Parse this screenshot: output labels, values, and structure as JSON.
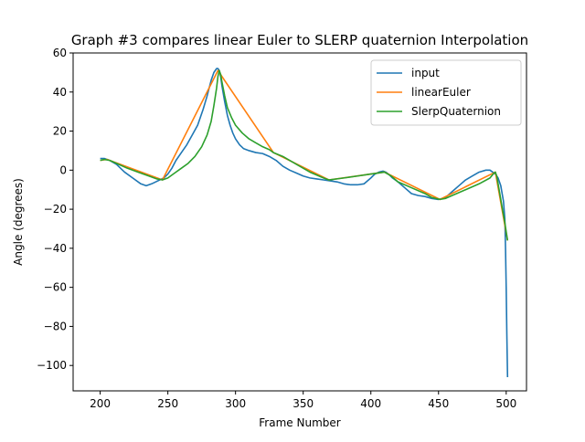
{
  "chart_data": {
    "type": "line",
    "title": "Graph #3 compares linear Euler to SLERP quaternion Interpolation",
    "xlabel": "Frame Number",
    "ylabel": "Angle (degrees)",
    "xlim": [
      180,
      515
    ],
    "ylim": [
      -113,
      60
    ],
    "xticks": [
      200,
      250,
      300,
      350,
      400,
      450,
      500
    ],
    "yticks": [
      60,
      40,
      20,
      0,
      -20,
      -40,
      -60,
      -80,
      -100
    ],
    "ytick_labels": [
      "60",
      "40",
      "20",
      "0",
      "−20",
      "−40",
      "−60",
      "−80",
      "−100"
    ],
    "grid": false,
    "legend_position": "top-right",
    "series": [
      {
        "name": "input",
        "color": "#1f77b4",
        "x": [
          200,
          203,
          207,
          212,
          218,
          224,
          230,
          234,
          238,
          241,
          244,
          247,
          250,
          253,
          256,
          260,
          264,
          268,
          272,
          276,
          279,
          282,
          284,
          286,
          287,
          288,
          289,
          290,
          292,
          294,
          296,
          298,
          300,
          303,
          306,
          310,
          315,
          320,
          325,
          330,
          335,
          340,
          345,
          350,
          355,
          360,
          365,
          370,
          375,
          380,
          385,
          390,
          395,
          400,
          403,
          406,
          409,
          411,
          413,
          416,
          420,
          425,
          430,
          435,
          440,
          445,
          450,
          453,
          456,
          460,
          465,
          470,
          475,
          480,
          485,
          488,
          490,
          492,
          494,
          496,
          497,
          498,
          499,
          499.5,
          500,
          500.5,
          501
        ],
        "y": [
          6,
          6,
          5,
          3,
          -1,
          -4,
          -7,
          -8,
          -7,
          -6,
          -5,
          -4,
          -2,
          1,
          5,
          9,
          13,
          18,
          23,
          31,
          38,
          46,
          50,
          52,
          52,
          51,
          48,
          43,
          35,
          28,
          23,
          19,
          16,
          13,
          11,
          10,
          9,
          8.5,
          7,
          5,
          2,
          0,
          -1.5,
          -3,
          -4,
          -4.5,
          -5,
          -5.5,
          -6,
          -7,
          -7.5,
          -7.5,
          -7,
          -4,
          -2,
          -1,
          -0.5,
          -1,
          -2,
          -4,
          -6,
          -9,
          -12,
          -13,
          -13.5,
          -14.5,
          -15,
          -14.5,
          -13.5,
          -11,
          -8,
          -5,
          -3,
          -1,
          0,
          0,
          -1,
          -2,
          -4,
          -8,
          -12,
          -16,
          -25,
          -40,
          -60,
          -85,
          -106
        ]
      },
      {
        "name": "linearEuler",
        "color": "#ff7f0e",
        "x": [
          200,
          205,
          246,
          287,
          328,
          369,
          410,
          451,
          492,
          501
        ],
        "y": [
          5,
          5.5,
          -5,
          51,
          9,
          -5,
          -1,
          -15,
          -1,
          -36
        ]
      },
      {
        "name": "SlerpQuaternion",
        "color": "#2ca02c",
        "x": [
          200,
          203,
          207,
          212,
          220,
          228,
          236,
          242,
          246,
          250,
          255,
          260,
          265,
          270,
          275,
          279,
          282,
          284,
          286,
          287,
          288,
          289,
          290,
          292,
          294,
          297,
          300,
          305,
          310,
          315,
          320,
          325,
          328,
          335,
          345,
          355,
          365,
          369,
          380,
          390,
          400,
          405,
          410,
          415,
          420,
          430,
          440,
          445,
          451,
          455,
          460,
          470,
          480,
          488,
          491,
          492,
          493,
          495,
          497,
          499,
          501
        ],
        "y": [
          5,
          5.5,
          5,
          3.5,
          1,
          -1,
          -3,
          -4.5,
          -5,
          -4,
          -1.5,
          1,
          3.5,
          7,
          12,
          18,
          25,
          33,
          42,
          48,
          51,
          49,
          45,
          38,
          32,
          27,
          23,
          19,
          16,
          14,
          12,
          10.5,
          9,
          7,
          3,
          -1,
          -4,
          -5,
          -4,
          -3,
          -2,
          -1.5,
          -1,
          -3,
          -6,
          -9,
          -12,
          -14,
          -15,
          -14.5,
          -13,
          -10,
          -7,
          -4,
          -1.5,
          -1,
          -3,
          -11,
          -19,
          -27,
          -36
        ]
      }
    ]
  }
}
